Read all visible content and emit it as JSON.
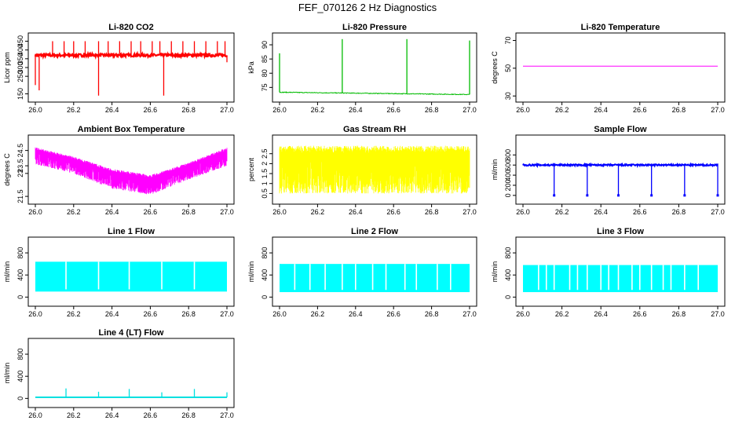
{
  "figure": {
    "title": "FEF_070126  2 Hz Diagnostics"
  },
  "chart_data": [
    {
      "id": "co2",
      "type": "line",
      "title": "Li-820 CO2",
      "ylabel": "Licor ppm",
      "color": "#ff0000",
      "xlim": [
        26.0,
        27.0
      ],
      "ylim": [
        130,
        470
      ],
      "xticks": [
        "26.0",
        "26.2",
        "26.4",
        "26.6",
        "26.8",
        "27.0"
      ],
      "yticks": [
        150,
        250,
        300,
        350,
        400,
        450
      ],
      "baseline": 370,
      "noise": 8,
      "spikes": [
        [
          26.0,
          200
        ],
        [
          26.02,
          170
        ],
        [
          26.09,
          450
        ],
        [
          26.15,
          450
        ],
        [
          26.2,
          450
        ],
        [
          26.26,
          450
        ],
        [
          26.33,
          140
        ],
        [
          26.33,
          450
        ],
        [
          26.38,
          450
        ],
        [
          26.44,
          450
        ],
        [
          26.5,
          450
        ],
        [
          26.55,
          450
        ],
        [
          26.61,
          450
        ],
        [
          26.65,
          450
        ],
        [
          26.67,
          140
        ],
        [
          26.71,
          450
        ],
        [
          26.77,
          450
        ],
        [
          26.83,
          450
        ],
        [
          26.89,
          450
        ],
        [
          26.95,
          450
        ],
        [
          26.99,
          450
        ],
        [
          27.0,
          330
        ]
      ]
    },
    {
      "id": "pressure",
      "type": "line",
      "title": "Li-820 Pressure",
      "ylabel": "kPa",
      "color": "#00bb00",
      "xlim": [
        26.0,
        27.0
      ],
      "ylim": [
        71.5,
        92.5
      ],
      "xticks": [
        "26.0",
        "26.2",
        "26.4",
        "26.6",
        "26.8",
        "27.0"
      ],
      "yticks": [
        75,
        80,
        85,
        90
      ],
      "baseline_start": 73.3,
      "baseline_end": 72.5,
      "spikes": [
        [
          26.0,
          87
        ],
        [
          26.33,
          92
        ],
        [
          26.67,
          92
        ],
        [
          27.0,
          91.5
        ]
      ]
    },
    {
      "id": "temperature",
      "type": "line",
      "title": "Li-820 Temperature",
      "ylabel": "degrees C",
      "color": "#ff00ff",
      "xlim": [
        26.0,
        27.0
      ],
      "ylim": [
        29,
        72
      ],
      "xticks": [
        "26.0",
        "26.2",
        "26.4",
        "26.6",
        "26.8",
        "27.0"
      ],
      "yticks": [
        30,
        50,
        70
      ],
      "constant": 51.5
    },
    {
      "id": "boxtemp",
      "type": "area",
      "title": "Ambient Box Temperature",
      "ylabel": "degrees C",
      "color": "#ff00ff",
      "xlim": [
        26.0,
        27.0
      ],
      "ylim": [
        21.3,
        25.2
      ],
      "xticks": [
        "26.0",
        "26.2",
        "26.4",
        "26.6",
        "26.8",
        "27.0"
      ],
      "yticks": [
        21.5,
        23.0,
        23.5,
        24.5
      ],
      "upper": [
        [
          26.0,
          24.7
        ],
        [
          26.2,
          24.1
        ],
        [
          26.4,
          23.3
        ],
        [
          26.6,
          22.9
        ],
        [
          26.8,
          23.7
        ],
        [
          27.0,
          24.7
        ]
      ],
      "lower": [
        [
          26.0,
          23.6
        ],
        [
          26.2,
          23.0
        ],
        [
          26.4,
          22.0
        ],
        [
          26.6,
          21.6
        ],
        [
          26.8,
          22.6
        ],
        [
          27.0,
          23.5
        ]
      ]
    },
    {
      "id": "rh",
      "type": "area",
      "title": "Gas Stream RH",
      "ylabel": "percent",
      "color": "#ffff00",
      "xlim": [
        26.0,
        27.0
      ],
      "ylim": [
        0.2,
        3.2
      ],
      "xticks": [
        "26.0",
        "26.2",
        "26.4",
        "26.6",
        "26.8",
        "27.0"
      ],
      "yticks": [
        0.5,
        1.0,
        1.5,
        2.0,
        2.5
      ],
      "upper": [
        [
          26.0,
          2.9
        ],
        [
          27.0,
          2.9
        ]
      ],
      "lower": [
        [
          26.0,
          0.5
        ],
        [
          27.0,
          0.5
        ]
      ]
    },
    {
      "id": "sampleflow",
      "type": "line",
      "title": "Sample Flow",
      "ylabel": "ml/min",
      "color": "#0000ff",
      "xlim": [
        26.0,
        27.0
      ],
      "ylim": [
        -80,
        1100
      ],
      "xticks": [
        "26.0",
        "26.2",
        "26.4",
        "26.6",
        "26.8",
        "27.0"
      ],
      "yticks": [
        0,
        200,
        400,
        600,
        800
      ],
      "baseline": 600,
      "dips": [
        26.16,
        26.33,
        26.49,
        26.66,
        26.83,
        27.0
      ]
    },
    {
      "id": "line1",
      "type": "area",
      "title": "Line 1 Flow",
      "ylabel": "ml/min",
      "color": "#00ffff",
      "xlim": [
        26.0,
        27.0
      ],
      "ylim": [
        -80,
        1000
      ],
      "xticks": [
        "26.0",
        "26.2",
        "26.4",
        "26.6",
        "26.8",
        "27.0"
      ],
      "yticks": [
        0,
        400,
        800
      ],
      "band": [
        100,
        640
      ],
      "gaps": [
        26.16,
        26.33,
        26.49,
        26.66,
        26.83
      ]
    },
    {
      "id": "line2",
      "type": "area",
      "title": "Line 2 Flow",
      "ylabel": "ml/min",
      "color": "#00ffff",
      "xlim": [
        26.0,
        27.0
      ],
      "ylim": [
        -80,
        1000
      ],
      "xticks": [
        "26.0",
        "26.2",
        "26.4",
        "26.6",
        "26.8",
        "27.0"
      ],
      "yticks": [
        0,
        400,
        800
      ],
      "band": [
        90,
        600
      ],
      "gaps": [
        26.08,
        26.16,
        26.24,
        26.33,
        26.4,
        26.49,
        26.56,
        26.66,
        26.72,
        26.83,
        26.9
      ]
    },
    {
      "id": "line3",
      "type": "area",
      "title": "Line 3 Flow",
      "ylabel": "ml/min",
      "color": "#00ffff",
      "xlim": [
        26.0,
        27.0
      ],
      "ylim": [
        -80,
        1000
      ],
      "xticks": [
        "26.0",
        "26.2",
        "26.4",
        "26.6",
        "26.8",
        "27.0"
      ],
      "yticks": [
        0,
        400,
        800
      ],
      "band": [
        90,
        580
      ],
      "gaps": [
        26.08,
        26.12,
        26.16,
        26.24,
        26.28,
        26.33,
        26.4,
        26.44,
        26.49,
        26.56,
        26.6,
        26.66,
        26.72,
        26.76,
        26.83,
        26.9
      ]
    },
    {
      "id": "line4",
      "type": "line",
      "title": "Line 4 (LT) Flow",
      "ylabel": "ml/min",
      "color": "#00e0e0",
      "xlim": [
        26.0,
        27.0
      ],
      "ylim": [
        -80,
        1000
      ],
      "xticks": [
        "26.0",
        "26.2",
        "26.4",
        "26.6",
        "26.8",
        "27.0"
      ],
      "yticks": [
        0,
        400,
        800
      ],
      "baseline": 20,
      "spikes": [
        [
          26.16,
          180
        ],
        [
          26.33,
          120
        ],
        [
          26.49,
          170
        ],
        [
          26.66,
          110
        ],
        [
          26.83,
          170
        ],
        [
          27.0,
          110
        ]
      ]
    }
  ]
}
